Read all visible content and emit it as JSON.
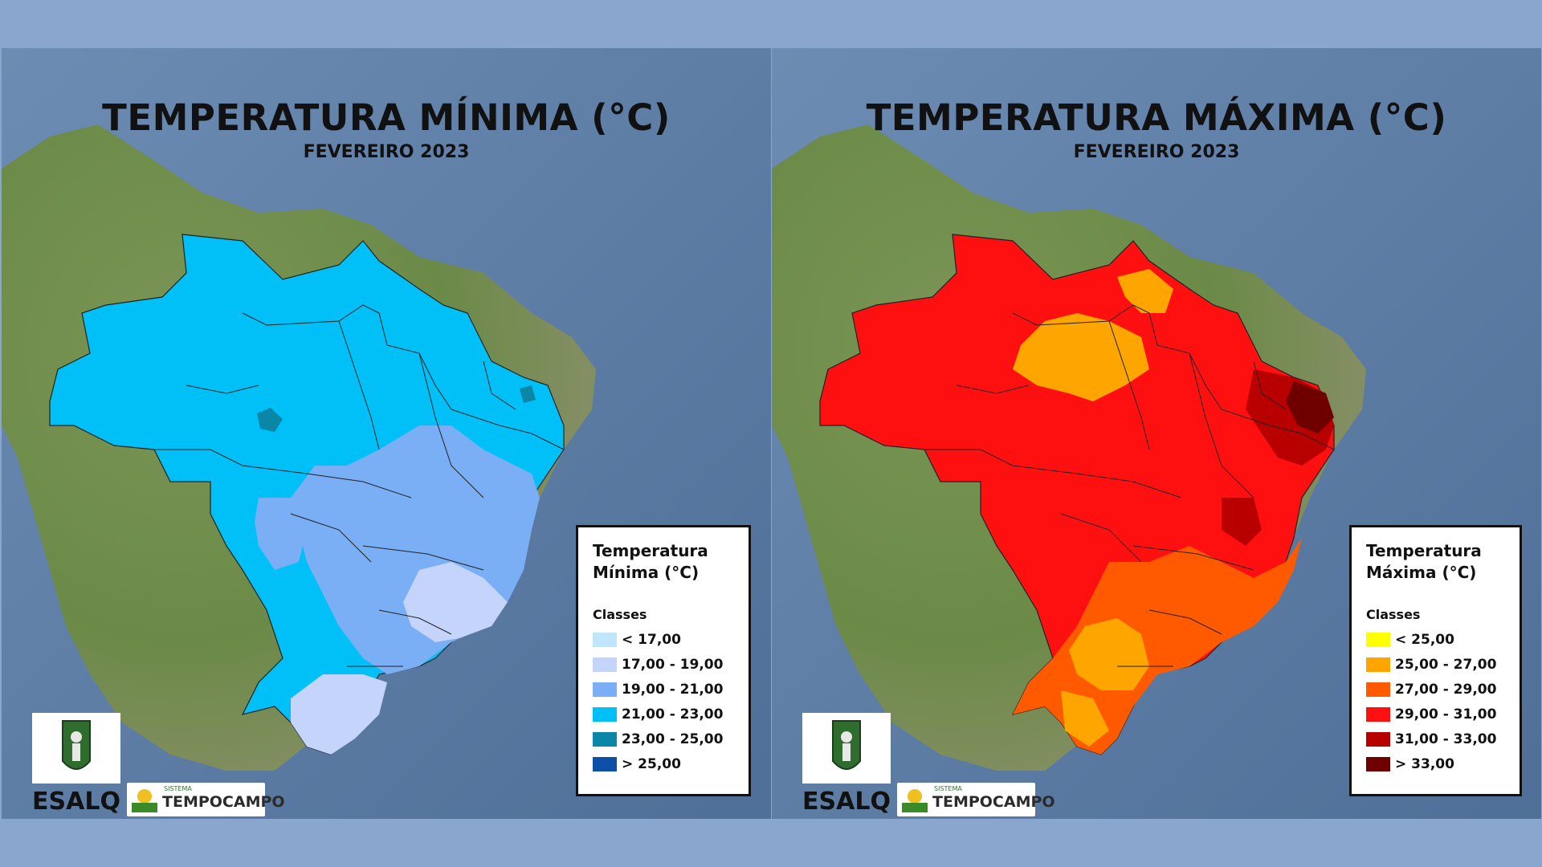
{
  "maps": {
    "min": {
      "title": "TEMPERATURA MÍNIMA (°C)",
      "subtitle": "FEVEREIRO 2023",
      "legend_title_line1": "Temperatura",
      "legend_title_line2": "Mínima (°C)",
      "legend_classes_label": "Classes",
      "classes": [
        {
          "label": "< 17,00",
          "color": "#bfe6fb"
        },
        {
          "label": "17,00 - 19,00",
          "color": "#c4d4fb"
        },
        {
          "label": "19,00 - 21,00",
          "color": "#7aaef5"
        },
        {
          "label": "21,00 - 23,00",
          "color": "#00c0f7"
        },
        {
          "label": "23,00 - 25,00",
          "color": "#0a86a6"
        },
        {
          "label": "> 25,00",
          "color": "#0b4fa8"
        }
      ]
    },
    "max": {
      "title": "TEMPERATURA MÁXIMA (°C)",
      "subtitle": "FEVEREIRO 2023",
      "legend_title_line1": "Temperatura",
      "legend_title_line2": "Máxima (°C)",
      "legend_classes_label": "Classes",
      "classes": [
        {
          "label": "< 25,00",
          "color": "#ffff00"
        },
        {
          "label": "25,00 - 27,00",
          "color": "#ffa500"
        },
        {
          "label": "27,00 - 29,00",
          "color": "#ff5a00"
        },
        {
          "label": "29,00 - 31,00",
          "color": "#ff1010"
        },
        {
          "label": "31,00 - 33,00",
          "color": "#b80000"
        },
        {
          "label": "> 33,00",
          "color": "#6e0000"
        }
      ]
    }
  },
  "logos": {
    "esalq": "ESALQ",
    "tempo_small": "SISTEMA",
    "tempo_big": "TEMPOCAMPO"
  },
  "colors": {
    "ocean": "#5a7aa0",
    "land": "#6f8f4a",
    "page_background": "#89a6cf"
  }
}
